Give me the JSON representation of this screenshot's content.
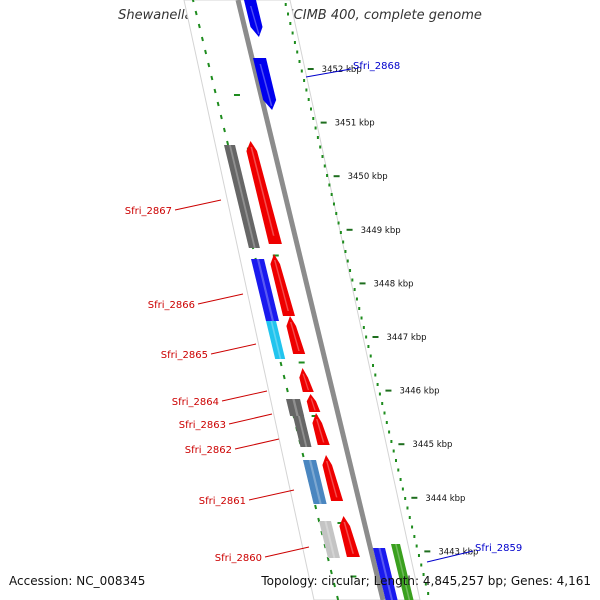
{
  "header": {
    "title": "Shewanella frigidimarina NCIMB 400, complete genome"
  },
  "footer": {
    "accession": "Accession: NC_008345",
    "summary": "Topology: circular; Length: 4,845,257 bp; Genes: 4,161"
  },
  "colors": {
    "background": "#ffffff",
    "backbone": "#888888",
    "gc_track": "#1e8c1e",
    "position_ticks": "#1e8c1e",
    "forward_gene": "#0000ee",
    "reverse_gene": "#ee0000",
    "label_forward": "#0000cc",
    "label_reverse": "#cc0000"
  },
  "ruler": {
    "unit": "kbp",
    "labels": [
      "3452 kbp",
      "3451 kbp",
      "3450 kbp",
      "3449 kbp",
      "3448 kbp",
      "3447 kbp",
      "3446 kbp",
      "3445 kbp",
      "3444 kbp",
      "3443 kbp"
    ]
  },
  "genes": [
    {
      "name": "Sfri_2868",
      "strand": "forward",
      "color": "#0000ee"
    },
    {
      "name": "Sfri_2867",
      "strand": "reverse",
      "color": "#ee0000"
    },
    {
      "name": "Sfri_2866",
      "strand": "reverse",
      "color": "#ee0000"
    },
    {
      "name": "Sfri_2865",
      "strand": "reverse",
      "color": "#ee0000"
    },
    {
      "name": "Sfri_2864",
      "strand": "reverse",
      "color": "#ee0000"
    },
    {
      "name": "Sfri_2863",
      "strand": "reverse",
      "color": "#ee0000"
    },
    {
      "name": "Sfri_2862",
      "strand": "reverse",
      "color": "#ee0000"
    },
    {
      "name": "Sfri_2861",
      "strand": "reverse",
      "color": "#ee0000"
    },
    {
      "name": "Sfri_2860",
      "strand": "reverse",
      "color": "#ee0000"
    },
    {
      "name": "Sfri_2859",
      "strand": "forward",
      "color": "#0000ee"
    }
  ],
  "cog_blocks": [
    {
      "color": "#666666"
    },
    {
      "color": "#1a1aee"
    },
    {
      "color": "#22c4ee"
    },
    {
      "color": "#666666"
    },
    {
      "color": "#4a86c0"
    },
    {
      "color": "#c4c4c4"
    },
    {
      "color": "#1a1aee"
    },
    {
      "color": "#3aa01e"
    }
  ]
}
